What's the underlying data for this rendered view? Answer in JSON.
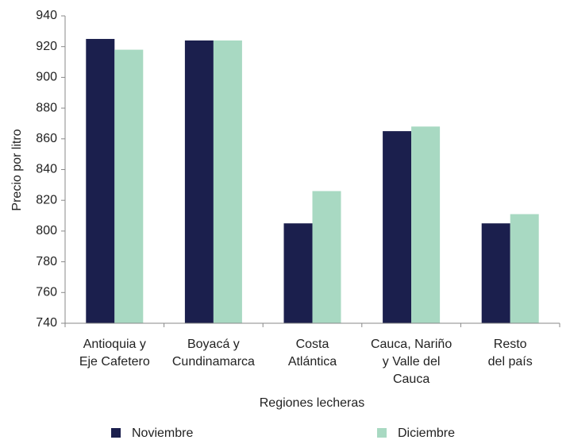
{
  "chart_data": {
    "type": "bar",
    "x_label": "Regiones lecheras",
    "y_label": "Precio por litro",
    "categories": [
      "Antioquia y\nEje Cafetero",
      "Boyacá y\nCundinamarca",
      "Costa\nAtlántica",
      "Cauca, Nariño\ny Valle del\nCauca",
      "Resto\ndel país"
    ],
    "series": [
      {
        "name": "Noviembre",
        "color": "#1b1f4d",
        "values": [
          925,
          924,
          805,
          865,
          805
        ]
      },
      {
        "name": "Diciembre",
        "color": "#a8d9c2",
        "values": [
          918,
          924,
          826,
          868,
          811
        ]
      }
    ],
    "ylim": [
      740,
      940
    ],
    "yticks": [
      740,
      760,
      780,
      800,
      820,
      840,
      860,
      880,
      900,
      920,
      940
    ],
    "grid": false,
    "legend": "bottom"
  }
}
